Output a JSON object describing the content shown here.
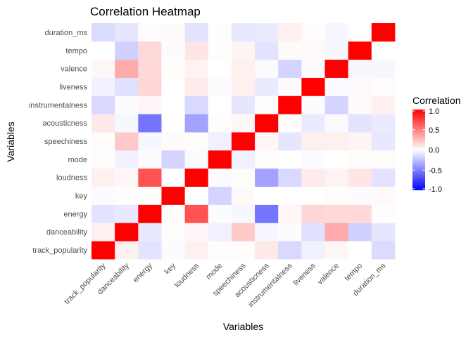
{
  "chart_data": {
    "type": "heatmap",
    "title": "Correlation Heatmap",
    "xlabel": "Variables",
    "ylabel": "Variables",
    "variables": [
      "track_popularity",
      "danceability",
      "energy",
      "key",
      "loudness",
      "mode",
      "speechiness",
      "acousticness",
      "instrumentalness",
      "liveness",
      "valence",
      "tempo",
      "duration_ms"
    ],
    "matrix": [
      [
        1.0,
        0.06,
        -0.11,
        -0.01,
        0.06,
        0.01,
        0.01,
        0.09,
        -0.15,
        -0.05,
        0.03,
        0.0,
        -0.14
      ],
      [
        0.06,
        1.0,
        -0.09,
        0.01,
        0.03,
        -0.06,
        0.21,
        -0.03,
        -0.01,
        -0.12,
        0.33,
        -0.18,
        -0.1
      ],
      [
        -0.11,
        -0.09,
        1.0,
        0.01,
        0.68,
        -0.01,
        -0.03,
        -0.54,
        0.03,
        0.16,
        0.15,
        0.15,
        0.01
      ],
      [
        -0.01,
        0.01,
        0.01,
        1.0,
        0.0,
        -0.17,
        0.02,
        0.0,
        0.0,
        0.0,
        0.01,
        -0.01,
        0.02
      ],
      [
        0.06,
        0.03,
        0.68,
        0.0,
        1.0,
        -0.02,
        0.01,
        -0.36,
        -0.15,
        0.08,
        0.05,
        0.1,
        -0.11
      ],
      [
        0.01,
        -0.06,
        -0.01,
        -0.17,
        -0.02,
        1.0,
        -0.06,
        0.01,
        0.0,
        -0.01,
        0.0,
        0.01,
        0.01
      ],
      [
        0.01,
        0.21,
        -0.03,
        0.02,
        0.01,
        -0.06,
        1.0,
        0.03,
        -0.1,
        0.06,
        0.06,
        0.04,
        -0.09
      ],
      [
        0.09,
        -0.03,
        -0.54,
        0.0,
        -0.36,
        0.01,
        0.03,
        1.0,
        0.01,
        -0.08,
        -0.02,
        -0.11,
        -0.08
      ],
      [
        -0.15,
        -0.01,
        0.03,
        0.0,
        -0.15,
        0.0,
        -0.1,
        0.01,
        1.0,
        -0.01,
        -0.17,
        0.02,
        0.06
      ],
      [
        -0.05,
        -0.12,
        0.16,
        0.0,
        0.08,
        -0.01,
        0.06,
        -0.08,
        -0.01,
        1.0,
        -0.02,
        0.02,
        0.01
      ],
      [
        0.03,
        0.33,
        0.15,
        0.01,
        0.05,
        0.0,
        0.06,
        -0.02,
        -0.17,
        -0.02,
        1.0,
        -0.03,
        -0.03
      ],
      [
        0.0,
        -0.18,
        0.15,
        -0.01,
        0.1,
        0.01,
        0.04,
        -0.11,
        0.02,
        0.02,
        -0.03,
        1.0,
        0.0
      ],
      [
        -0.14,
        -0.1,
        0.01,
        0.02,
        -0.11,
        0.01,
        -0.09,
        -0.08,
        0.06,
        0.01,
        -0.03,
        0.0,
        1.0
      ]
    ],
    "legend": {
      "title": "Correlation",
      "ticks": [
        "1.0",
        "0.5",
        "0.0",
        "-0.5",
        "-1.0"
      ],
      "tick_values": [
        1.0,
        0.5,
        0.0,
        -0.5,
        -1.0
      ],
      "range": [
        -1,
        1
      ],
      "low_color": "#0000ff",
      "mid_color": "#ffffff",
      "high_color": "#ff0000",
      "placement": "right"
    },
    "grid": false
  }
}
